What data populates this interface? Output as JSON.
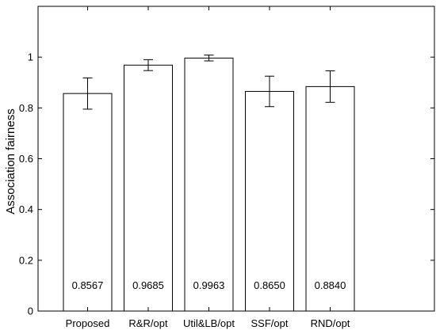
{
  "chart_data": {
    "type": "bar",
    "title": "",
    "xlabel": "",
    "ylabel": "Association fairness",
    "categories": [
      "Proposed",
      "R&R/opt",
      "Util&LB/opt",
      "SSF/opt",
      "RND/opt"
    ],
    "values": [
      0.8567,
      0.9685,
      0.9963,
      0.865,
      0.884
    ],
    "value_labels": [
      "0.8567",
      "0.9685",
      "0.9963",
      "0.8650",
      "0.8840"
    ],
    "error_low": [
      0.795,
      0.947,
      0.985,
      0.805,
      0.822
    ],
    "error_high": [
      0.918,
      0.99,
      1.008,
      0.925,
      0.946
    ],
    "ylim": [
      0,
      1.2
    ],
    "yticks": [
      0,
      0.2,
      0.4,
      0.6,
      0.8,
      1
    ],
    "ytick_labels": [
      "0",
      "0.2",
      "0.4",
      "0.6",
      "0.8",
      "1"
    ],
    "grid": false,
    "legend": "none"
  }
}
